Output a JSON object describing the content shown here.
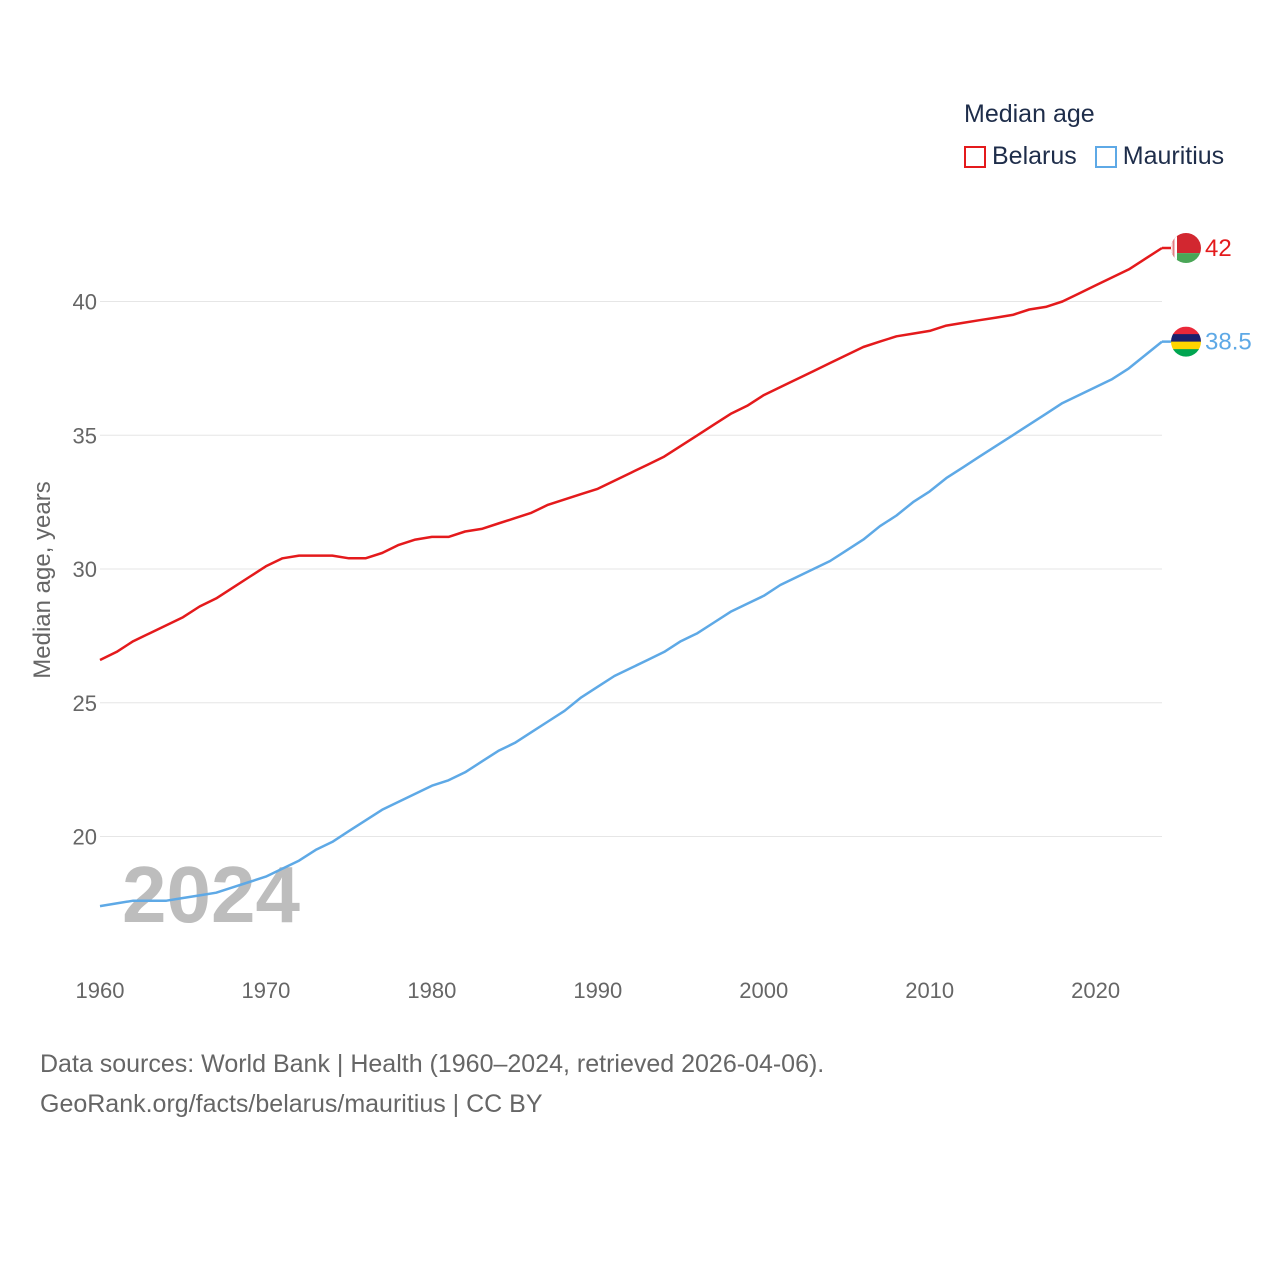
{
  "legend": {
    "title": "Median age",
    "items": [
      {
        "label": "Belarus",
        "color": "#e41a1c"
      },
      {
        "label": "Mauritius",
        "color": "#5ea9e6"
      }
    ]
  },
  "year_label": "2024",
  "footer": {
    "line1": "Data sources: World Bank | Health (1960–2024, retrieved 2026-04-06).",
    "line2": "GeoRank.org/facts/belarus/mauritius | CC BY"
  },
  "chart_data": {
    "type": "line",
    "ylabel": "Median age, years",
    "xlabel": "",
    "xlim": [
      1960,
      2024
    ],
    "ylim": [
      17,
      42
    ],
    "y_ticks": [
      20,
      25,
      30,
      35,
      40
    ],
    "x_ticks": [
      1960,
      1970,
      1980,
      1990,
      2000,
      2010,
      2020
    ],
    "grid": true,
    "legend_position": "top-right",
    "series": [
      {
        "name": "Belarus",
        "color": "#e41a1c",
        "end_label": "42",
        "flag_icon": "belarus-flag-icon",
        "x": [
          1960,
          1961,
          1962,
          1963,
          1964,
          1965,
          1966,
          1967,
          1968,
          1969,
          1970,
          1971,
          1972,
          1973,
          1974,
          1975,
          1976,
          1977,
          1978,
          1979,
          1980,
          1981,
          1982,
          1983,
          1984,
          1985,
          1986,
          1987,
          1988,
          1989,
          1990,
          1991,
          1992,
          1993,
          1994,
          1995,
          1996,
          1997,
          1998,
          1999,
          2000,
          2001,
          2002,
          2003,
          2004,
          2005,
          2006,
          2007,
          2008,
          2009,
          2010,
          2011,
          2012,
          2013,
          2014,
          2015,
          2016,
          2017,
          2018,
          2019,
          2020,
          2021,
          2022,
          2023,
          2024
        ],
        "values": [
          26.6,
          26.9,
          27.3,
          27.6,
          27.9,
          28.2,
          28.6,
          28.9,
          29.3,
          29.7,
          30.1,
          30.4,
          30.5,
          30.5,
          30.5,
          30.4,
          30.4,
          30.6,
          30.9,
          31.1,
          31.2,
          31.2,
          31.4,
          31.5,
          31.7,
          31.9,
          32.1,
          32.4,
          32.6,
          32.8,
          33.0,
          33.3,
          33.6,
          33.9,
          34.2,
          34.6,
          35.0,
          35.4,
          35.8,
          36.1,
          36.5,
          36.8,
          37.1,
          37.4,
          37.7,
          38.0,
          38.3,
          38.5,
          38.7,
          38.8,
          38.9,
          39.1,
          39.2,
          39.3,
          39.4,
          39.5,
          39.7,
          39.8,
          40.0,
          40.3,
          40.6,
          40.9,
          41.2,
          41.6,
          42.0
        ]
      },
      {
        "name": "Mauritius",
        "color": "#5ea9e6",
        "end_label": "38.5",
        "flag_icon": "mauritius-flag-icon",
        "x": [
          1960,
          1961,
          1962,
          1963,
          1964,
          1965,
          1966,
          1967,
          1968,
          1969,
          1970,
          1971,
          1972,
          1973,
          1974,
          1975,
          1976,
          1977,
          1978,
          1979,
          1980,
          1981,
          1982,
          1983,
          1984,
          1985,
          1986,
          1987,
          1988,
          1989,
          1990,
          1991,
          1992,
          1993,
          1994,
          1995,
          1996,
          1997,
          1998,
          1999,
          2000,
          2001,
          2002,
          2003,
          2004,
          2005,
          2006,
          2007,
          2008,
          2009,
          2010,
          2011,
          2012,
          2013,
          2014,
          2015,
          2016,
          2017,
          2018,
          2019,
          2020,
          2021,
          2022,
          2023,
          2024
        ],
        "values": [
          17.4,
          17.5,
          17.6,
          17.6,
          17.6,
          17.7,
          17.8,
          17.9,
          18.1,
          18.3,
          18.5,
          18.8,
          19.1,
          19.5,
          19.8,
          20.2,
          20.6,
          21.0,
          21.3,
          21.6,
          21.9,
          22.1,
          22.4,
          22.8,
          23.2,
          23.5,
          23.9,
          24.3,
          24.7,
          25.2,
          25.6,
          26.0,
          26.3,
          26.6,
          26.9,
          27.3,
          27.6,
          28.0,
          28.4,
          28.7,
          29.0,
          29.4,
          29.7,
          30.0,
          30.3,
          30.7,
          31.1,
          31.6,
          32.0,
          32.5,
          32.9,
          33.4,
          33.8,
          34.2,
          34.6,
          35.0,
          35.4,
          35.8,
          36.2,
          36.5,
          36.8,
          37.1,
          37.5,
          38.0,
          38.5
        ]
      }
    ]
  }
}
